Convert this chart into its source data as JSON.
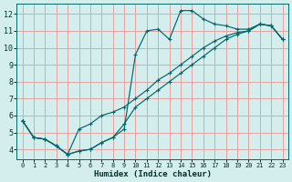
{
  "xlabel": "Humidex (Indice chaleur)",
  "background_color": "#d4eeee",
  "grid_color": "#e8a0a0",
  "line_color": "#006868",
  "xlim": [
    -0.5,
    23.5
  ],
  "ylim": [
    3.4,
    12.6
  ],
  "xticks": [
    0,
    1,
    2,
    3,
    4,
    5,
    6,
    7,
    8,
    9,
    10,
    11,
    12,
    13,
    14,
    15,
    16,
    17,
    18,
    19,
    20,
    21,
    22,
    23
  ],
  "yticks": [
    4,
    5,
    6,
    7,
    8,
    9,
    10,
    11,
    12
  ],
  "line1_x": [
    0,
    1,
    2,
    3,
    4,
    5,
    6,
    7,
    8,
    9,
    10,
    11,
    12,
    13,
    14,
    15,
    16,
    17,
    18,
    19,
    20,
    21,
    22,
    23
  ],
  "line1_y": [
    5.7,
    4.7,
    4.6,
    4.2,
    3.7,
    3.9,
    4.0,
    4.4,
    4.7,
    5.2,
    9.6,
    11.0,
    11.1,
    10.5,
    12.2,
    12.2,
    11.7,
    11.4,
    11.3,
    11.1,
    11.1,
    11.4,
    11.3,
    10.5
  ],
  "line2_x": [
    0,
    1,
    2,
    3,
    4,
    5,
    6,
    7,
    8,
    9,
    10,
    11,
    12,
    13,
    14,
    15,
    16,
    17,
    18,
    19,
    20,
    21,
    22,
    23
  ],
  "line2_y": [
    5.7,
    4.7,
    4.6,
    4.2,
    3.7,
    5.2,
    5.5,
    6.0,
    6.2,
    6.5,
    7.0,
    7.5,
    8.1,
    8.5,
    9.0,
    9.5,
    10.0,
    10.4,
    10.7,
    10.9,
    11.0,
    11.4,
    11.3,
    10.5
  ],
  "line3_x": [
    0,
    1,
    2,
    3,
    4,
    5,
    6,
    7,
    8,
    9,
    10,
    11,
    12,
    13,
    14,
    15,
    16,
    17,
    18,
    19,
    20,
    21,
    22,
    23
  ],
  "line3_y": [
    5.7,
    4.7,
    4.6,
    4.2,
    3.7,
    3.9,
    4.0,
    4.4,
    4.7,
    5.5,
    6.5,
    7.0,
    7.5,
    8.0,
    8.5,
    9.0,
    9.5,
    10.0,
    10.5,
    10.8,
    11.0,
    11.4,
    11.3,
    10.5
  ]
}
